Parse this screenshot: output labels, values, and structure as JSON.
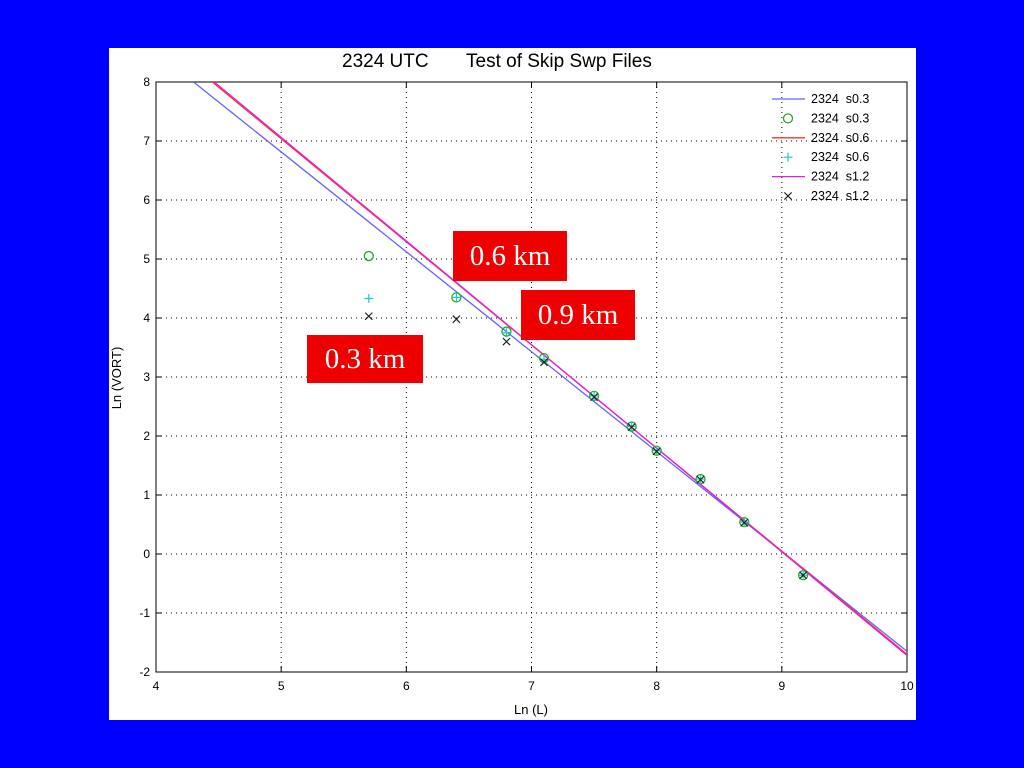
{
  "chart_data": {
    "type": "scatter",
    "title": "2324 UTC     Test of Skip Swp Files",
    "title_parts": [
      "2324 UTC",
      "Test of Skip Swp Files"
    ],
    "xlabel": "Ln (L)",
    "ylabel": "Ln (VORT)",
    "xlim": [
      4,
      10
    ],
    "ylim": [
      -2,
      8
    ],
    "x_ticks": [
      4,
      5,
      6,
      7,
      8,
      9,
      10
    ],
    "y_ticks": [
      -2,
      -1,
      0,
      1,
      2,
      3,
      4,
      5,
      6,
      7,
      8
    ],
    "grid": true,
    "legend_position": "top-right",
    "lines": [
      {
        "name": "2324  s0.3",
        "color": "#6464ff",
        "x": [
          4.3,
          10.0
        ],
        "y": [
          8.0,
          -1.65
        ]
      },
      {
        "name": "2324  s0.6",
        "color": "#ff3030",
        "x": [
          4.45,
          10.0
        ],
        "y": [
          8.0,
          -1.7
        ]
      },
      {
        "name": "2324  s1.2",
        "color": "#dd22dd",
        "x": [
          4.42,
          10.0
        ],
        "y": [
          8.08,
          -1.72
        ]
      }
    ],
    "series": [
      {
        "name": "2324  s0.3",
        "marker": "circle",
        "color": "#22aa22",
        "x": [
          5.7,
          6.4,
          6.8,
          7.1,
          7.5,
          7.8,
          8.0,
          8.35,
          8.7,
          9.17
        ],
        "y": [
          5.05,
          4.35,
          3.77,
          3.32,
          2.68,
          2.16,
          1.75,
          1.27,
          0.54,
          -0.36
        ]
      },
      {
        "name": "2324  s0.6",
        "marker": "plus",
        "color": "#22c8c8",
        "x": [
          5.7,
          6.4,
          6.8,
          7.1,
          7.5,
          7.8,
          8.0,
          8.35,
          8.7,
          9.17
        ],
        "y": [
          4.33,
          4.35,
          3.75,
          3.3,
          2.68,
          2.16,
          1.75,
          1.27,
          0.54,
          -0.36
        ]
      },
      {
        "name": "2324  s1.2",
        "marker": "x",
        "color": "#222222",
        "x": [
          5.7,
          6.4,
          6.8,
          7.1,
          7.5,
          7.8,
          8.0,
          8.35,
          8.7,
          9.17
        ],
        "y": [
          4.03,
          3.98,
          3.6,
          3.25,
          2.66,
          2.15,
          1.74,
          1.26,
          0.53,
          -0.36
        ]
      }
    ],
    "legend_entries": [
      {
        "label": "2324  s0.3",
        "kind": "line",
        "color": "#6464ff"
      },
      {
        "label": "2324  s0.3",
        "kind": "circle",
        "color": "#22aa22"
      },
      {
        "label": "2324  s0.6",
        "kind": "line",
        "color": "#ff3030"
      },
      {
        "label": "2324  s0.6",
        "kind": "plus",
        "color": "#22c8c8"
      },
      {
        "label": "2324  s1.2",
        "kind": "line",
        "color": "#dd22dd"
      },
      {
        "label": "2324  s1.2",
        "kind": "x",
        "color": "#222222"
      }
    ]
  },
  "annotations": {
    "km_03": "0.3 km",
    "km_06": "0.6 km",
    "km_09": "0.9 km"
  },
  "colors": {
    "background": "#0000ff",
    "panel": "#ffffff",
    "callout": "#ee0000",
    "callout_text": "#ffffff"
  }
}
